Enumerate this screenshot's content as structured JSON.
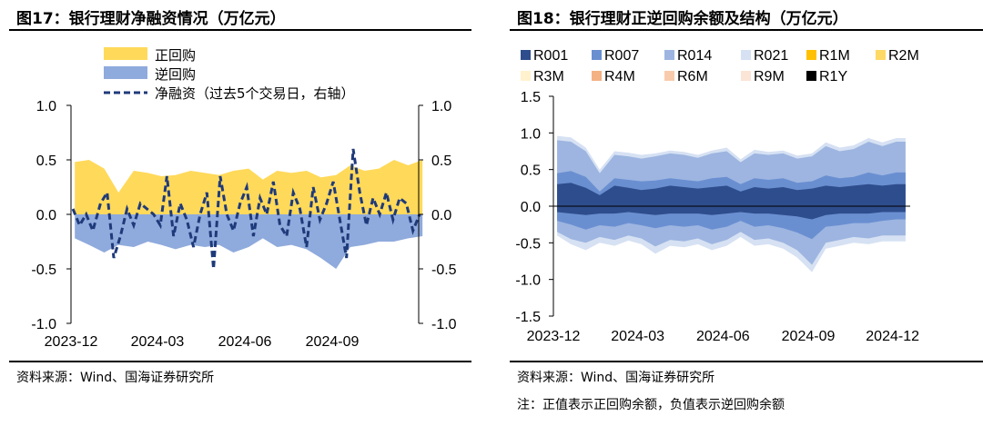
{
  "charts": [
    {
      "title": "图17：银行理财净融资情况（万亿元）",
      "source": "资料来源：Wind、国海证券研究所",
      "chart_data": {
        "type": "area",
        "title": "图17：银行理财净融资情况（万亿元）",
        "x_tick_labels": [
          "2023-12",
          "2024-03",
          "2024-06",
          "2024-09"
        ],
        "x_range": [
          "2023-12-01",
          "2024-12-01"
        ],
        "ylim": [
          -1.0,
          1.0
        ],
        "y2lim": [
          -1.0,
          1.0
        ],
        "y_tick_labels": [
          "1.0",
          "0.5",
          "0.0",
          "-0.5",
          "-1.0"
        ],
        "y2_tick_labels": [
          "1.0",
          "0.5",
          "0.0",
          "-0.5",
          "-1.0"
        ],
        "legend_position": "top-left",
        "grid": false,
        "series": [
          {
            "name": "正回购",
            "style": "area",
            "color": "#FFD95A",
            "axis": "left",
            "x": [
              "2023-12-05",
              "2023-12-20",
              "2024-01-05",
              "2024-01-20",
              "2024-02-05",
              "2024-02-20",
              "2024-03-05",
              "2024-03-20",
              "2024-04-05",
              "2024-04-20",
              "2024-05-05",
              "2024-05-20",
              "2024-06-05",
              "2024-06-20",
              "2024-07-05",
              "2024-07-20",
              "2024-08-05",
              "2024-08-20",
              "2024-09-05",
              "2024-09-20",
              "2024-10-05",
              "2024-10-20",
              "2024-11-05",
              "2024-11-20",
              "2024-12-05"
            ],
            "values": [
              0.48,
              0.5,
              0.42,
              0.2,
              0.4,
              0.38,
              0.35,
              0.36,
              0.4,
              0.38,
              0.36,
              0.4,
              0.42,
              0.32,
              0.4,
              0.38,
              0.4,
              0.34,
              0.36,
              0.45,
              0.4,
              0.42,
              0.5,
              0.45,
              0.5
            ]
          },
          {
            "name": "逆回购",
            "style": "area",
            "color": "#8FAADC",
            "axis": "left",
            "x": [
              "2023-12-05",
              "2023-12-20",
              "2024-01-05",
              "2024-01-20",
              "2024-02-05",
              "2024-02-20",
              "2024-03-05",
              "2024-03-20",
              "2024-04-05",
              "2024-04-20",
              "2024-05-05",
              "2024-05-20",
              "2024-06-05",
              "2024-06-20",
              "2024-07-05",
              "2024-07-20",
              "2024-08-05",
              "2024-08-20",
              "2024-09-05",
              "2024-09-20",
              "2024-10-05",
              "2024-10-20",
              "2024-11-05",
              "2024-11-20",
              "2024-12-05"
            ],
            "values": [
              -0.22,
              -0.28,
              -0.35,
              -0.28,
              -0.3,
              -0.25,
              -0.28,
              -0.32,
              -0.28,
              -0.3,
              -0.28,
              -0.35,
              -0.3,
              -0.22,
              -0.3,
              -0.28,
              -0.32,
              -0.4,
              -0.5,
              -0.3,
              -0.28,
              -0.25,
              -0.25,
              -0.22,
              -0.2
            ]
          },
          {
            "name": "净融资（过去5个交易日，右轴）",
            "style": "dashed-line",
            "color": "#1F3A7A",
            "axis": "right",
            "x": [
              "2023-12-03",
              "2023-12-10",
              "2023-12-17",
              "2023-12-24",
              "2024-01-01",
              "2024-01-08",
              "2024-01-15",
              "2024-01-22",
              "2024-01-29",
              "2024-02-05",
              "2024-02-12",
              "2024-02-19",
              "2024-02-26",
              "2024-03-04",
              "2024-03-11",
              "2024-03-18",
              "2024-03-25",
              "2024-04-01",
              "2024-04-08",
              "2024-04-15",
              "2024-04-22",
              "2024-04-29",
              "2024-05-06",
              "2024-05-13",
              "2024-05-20",
              "2024-05-27",
              "2024-06-03",
              "2024-06-10",
              "2024-06-17",
              "2024-06-24",
              "2024-07-01",
              "2024-07-08",
              "2024-07-15",
              "2024-07-22",
              "2024-07-29",
              "2024-08-05",
              "2024-08-12",
              "2024-08-19",
              "2024-08-26",
              "2024-09-02",
              "2024-09-09",
              "2024-09-16",
              "2024-09-23",
              "2024-09-30",
              "2024-10-07",
              "2024-10-14",
              "2024-10-21",
              "2024-10-28",
              "2024-11-04",
              "2024-11-11",
              "2024-11-18",
              "2024-11-25",
              "2024-12-02"
            ],
            "values": [
              0.05,
              -0.1,
              0.0,
              -0.15,
              0.1,
              0.2,
              -0.4,
              -0.2,
              0.05,
              -0.1,
              0.1,
              0.05,
              0.0,
              -0.1,
              0.35,
              -0.2,
              0.1,
              -0.05,
              -0.3,
              0.0,
              0.2,
              -0.5,
              0.35,
              0.0,
              -0.15,
              0.1,
              0.25,
              -0.2,
              0.15,
              0.0,
              0.3,
              -0.1,
              -0.2,
              0.2,
              0.05,
              -0.3,
              0.25,
              -0.05,
              0.1,
              0.3,
              -0.05,
              -0.4,
              0.6,
              0.2,
              -0.1,
              0.15,
              0.0,
              0.2,
              -0.05,
              0.15,
              0.1,
              -0.15,
              0.0
            ]
          }
        ]
      }
    },
    {
      "title": "图18：银行理财正逆回购余额及结构（万亿元）",
      "source": "资料来源：Wind、国海证券研究所",
      "note": "注：正值表示正回购余额，负值表示逆回购余额",
      "chart_data": {
        "type": "area",
        "title": "图18：银行理财正逆回购余额及结构（万亿元）",
        "x_tick_labels": [
          "2023-12",
          "2024-03",
          "2024-06",
          "2024-09",
          "2024-12"
        ],
        "x_range": [
          "2023-12-01",
          "2024-12-20"
        ],
        "ylim": [
          -1.5,
          1.5
        ],
        "y_tick_labels": [
          "1.5",
          "1.0",
          "0.5",
          "0.0",
          "-0.5",
          "-1.0",
          "-1.5"
        ],
        "legend_position": "top",
        "grid": false,
        "x": [
          "2023-12-05",
          "2023-12-20",
          "2024-01-05",
          "2024-01-20",
          "2024-02-05",
          "2024-02-20",
          "2024-03-05",
          "2024-03-20",
          "2024-04-05",
          "2024-04-20",
          "2024-05-05",
          "2024-05-20",
          "2024-06-05",
          "2024-06-20",
          "2024-07-05",
          "2024-07-20",
          "2024-08-05",
          "2024-08-20",
          "2024-09-05",
          "2024-09-20",
          "2024-10-05",
          "2024-10-20",
          "2024-11-05",
          "2024-11-20",
          "2024-12-05",
          "2024-12-15"
        ],
        "series": [
          {
            "name": "R001",
            "color": "#2E4D8C",
            "positive": [
              0.3,
              0.32,
              0.25,
              0.15,
              0.28,
              0.25,
              0.22,
              0.24,
              0.28,
              0.26,
              0.24,
              0.26,
              0.28,
              0.2,
              0.26,
              0.24,
              0.26,
              0.22,
              0.24,
              0.28,
              0.26,
              0.28,
              0.3,
              0.28,
              0.3,
              0.3
            ],
            "negative": [
              -0.08,
              -0.1,
              -0.12,
              -0.1,
              -0.1,
              -0.08,
              -0.1,
              -0.12,
              -0.1,
              -0.1,
              -0.1,
              -0.12,
              -0.1,
              -0.08,
              -0.1,
              -0.1,
              -0.12,
              -0.14,
              -0.18,
              -0.12,
              -0.1,
              -0.1,
              -0.1,
              -0.08,
              -0.08,
              -0.08
            ]
          },
          {
            "name": "R007",
            "color": "#6A8FD1",
            "positive": [
              0.45,
              0.48,
              0.4,
              0.2,
              0.38,
              0.36,
              0.34,
              0.35,
              0.38,
              0.36,
              0.34,
              0.38,
              0.4,
              0.3,
              0.38,
              0.36,
              0.38,
              0.32,
              0.34,
              0.42,
              0.38,
              0.4,
              0.46,
              0.42,
              0.46,
              0.46
            ],
            "negative": [
              -0.2,
              -0.25,
              -0.32,
              -0.26,
              -0.28,
              -0.23,
              -0.26,
              -0.3,
              -0.26,
              -0.28,
              -0.26,
              -0.32,
              -0.28,
              -0.2,
              -0.28,
              -0.26,
              -0.3,
              -0.36,
              -0.45,
              -0.28,
              -0.26,
              -0.23,
              -0.23,
              -0.2,
              -0.18,
              -0.18
            ]
          },
          {
            "name": "R014",
            "color": "#9DB5E0",
            "positive": [
              0.9,
              0.88,
              0.75,
              0.45,
              0.7,
              0.68,
              0.65,
              0.68,
              0.72,
              0.7,
              0.66,
              0.72,
              0.75,
              0.6,
              0.72,
              0.7,
              0.72,
              0.65,
              0.68,
              0.82,
              0.75,
              0.78,
              0.88,
              0.82,
              0.88,
              0.88
            ],
            "negative": [
              -0.35,
              -0.45,
              -0.5,
              -0.42,
              -0.46,
              -0.4,
              -0.44,
              -0.55,
              -0.46,
              -0.48,
              -0.44,
              -0.52,
              -0.46,
              -0.35,
              -0.46,
              -0.44,
              -0.5,
              -0.6,
              -0.8,
              -0.5,
              -0.46,
              -0.42,
              -0.44,
              -0.4,
              -0.4,
              -0.4
            ]
          },
          {
            "name": "R021",
            "color": "#D6E1F3",
            "positive": [
              0.96,
              0.94,
              0.8,
              0.5,
              0.75,
              0.73,
              0.7,
              0.72,
              0.76,
              0.74,
              0.7,
              0.76,
              0.8,
              0.64,
              0.77,
              0.74,
              0.76,
              0.69,
              0.72,
              0.87,
              0.8,
              0.83,
              0.93,
              0.87,
              0.93,
              0.93
            ],
            "negative": [
              -0.4,
              -0.52,
              -0.6,
              -0.5,
              -0.54,
              -0.47,
              -0.52,
              -0.65,
              -0.54,
              -0.56,
              -0.52,
              -0.6,
              -0.54,
              -0.42,
              -0.54,
              -0.52,
              -0.58,
              -0.7,
              -0.9,
              -0.58,
              -0.54,
              -0.5,
              -0.52,
              -0.48,
              -0.48,
              -0.48
            ]
          },
          {
            "name": "R1M",
            "color": "#FFC000",
            "positive": [],
            "negative": []
          },
          {
            "name": "R2M",
            "color": "#FFD966",
            "positive": [],
            "negative": []
          },
          {
            "name": "R3M",
            "color": "#FFF2CC",
            "positive": [],
            "negative": []
          },
          {
            "name": "R4M",
            "color": "#F4B183",
            "positive": [],
            "negative": []
          },
          {
            "name": "R6M",
            "color": "#F8CBAD",
            "positive": [],
            "negative": []
          },
          {
            "name": "R9M",
            "color": "#FBE5D6",
            "positive": [],
            "negative": []
          },
          {
            "name": "R1Y",
            "color": "#000000",
            "positive": [],
            "negative": []
          }
        ]
      }
    }
  ]
}
